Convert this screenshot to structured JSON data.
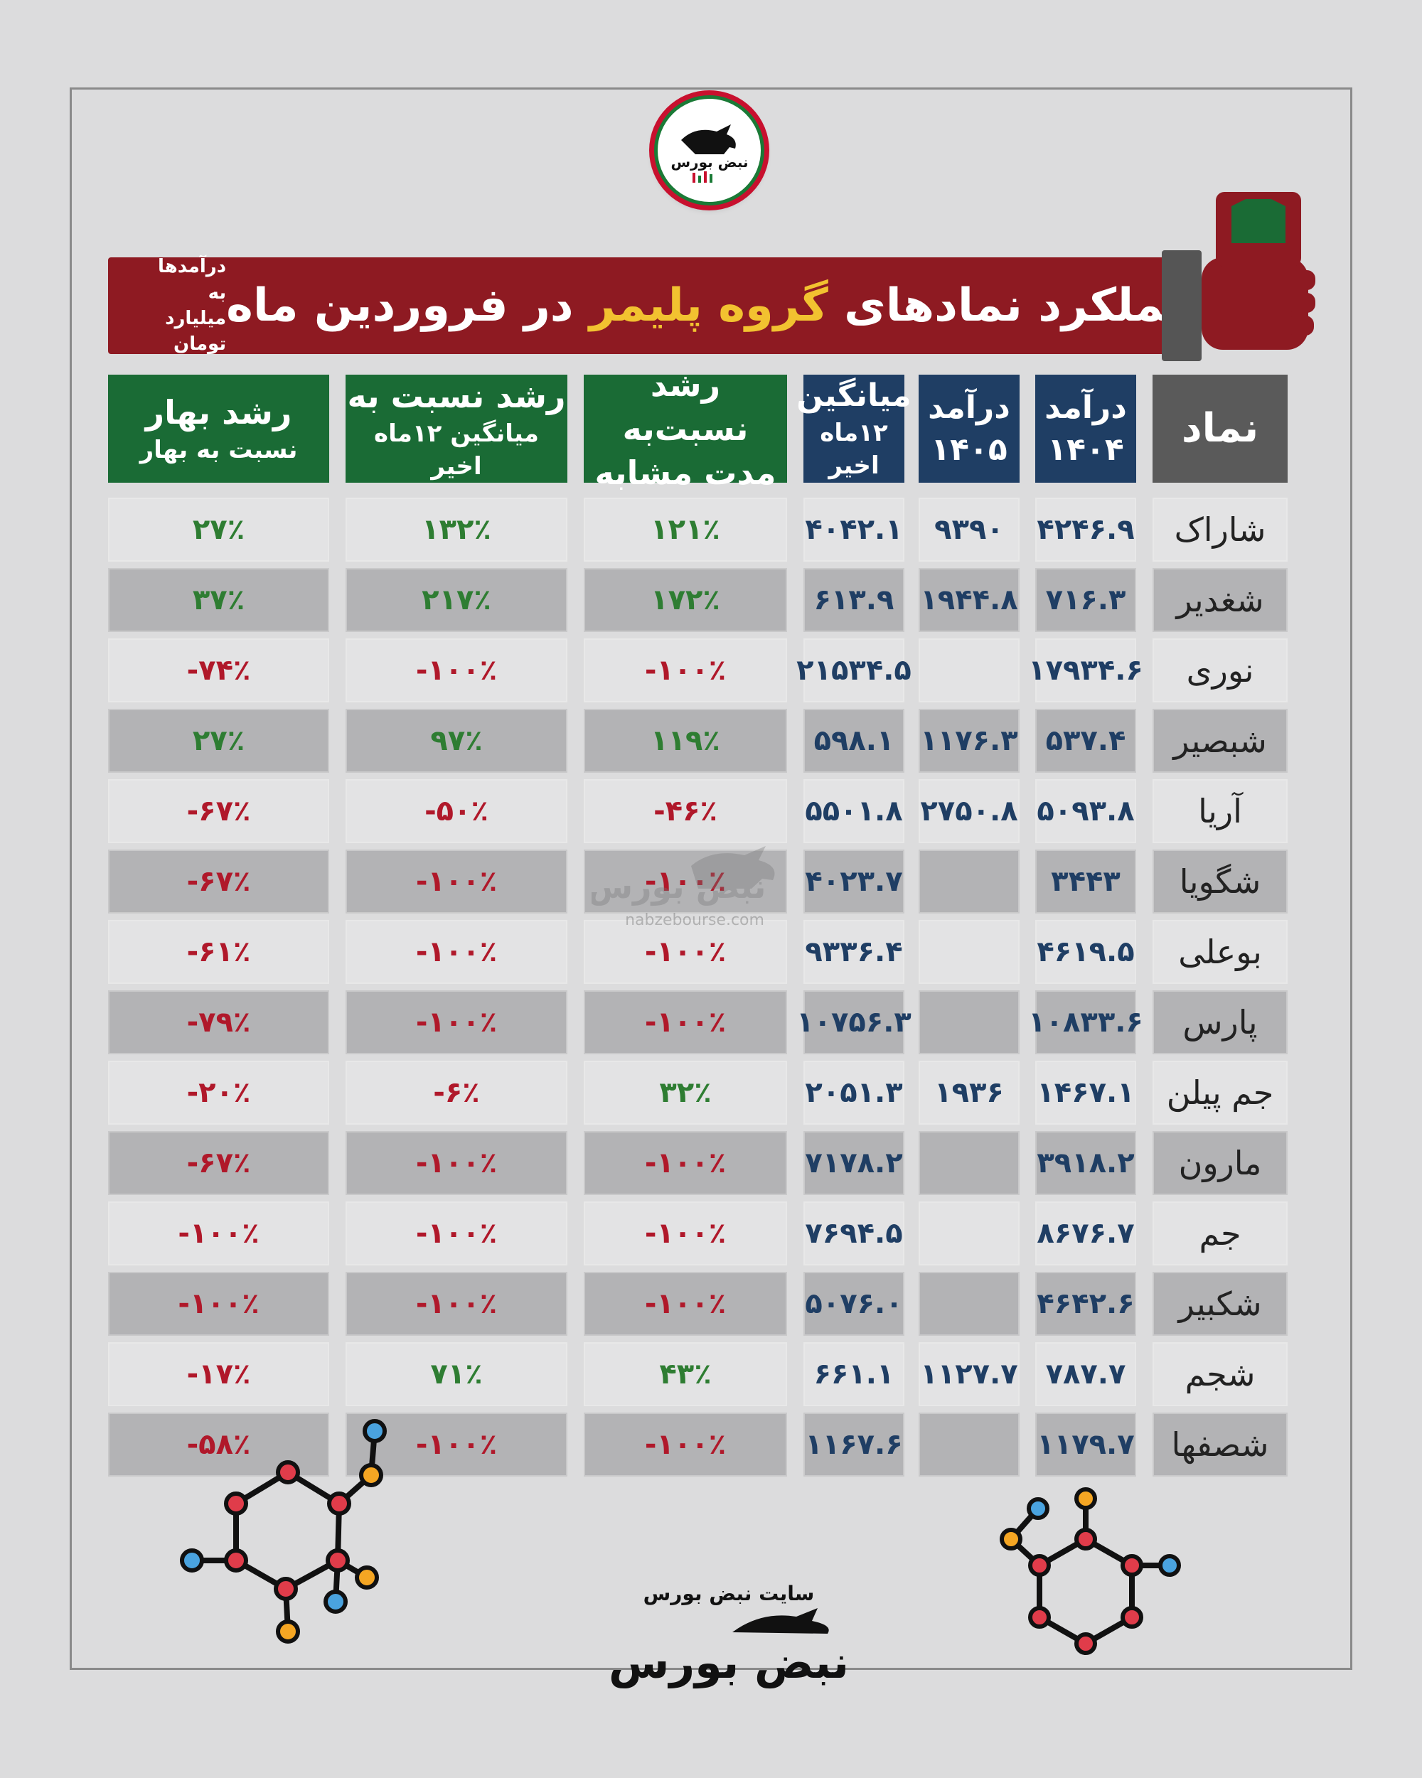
{
  "logo": {
    "text": "نبض بورس"
  },
  "banner": {
    "title_part1": "عملکرد نمادهای",
    "title_highlight": "گروه پلیمر",
    "title_part2": "در فروردین ماه",
    "note_line1": "درآمدها به",
    "note_line2": "میلیارد تومان"
  },
  "columns": {
    "symbol": "نماد",
    "rev1404_line1": "درآمد",
    "rev1404_line2": "۱۴۰۴",
    "rev1405_line1": "درآمد",
    "rev1405_line2": "۱۴۰۵",
    "avg_line1": "میانگین",
    "avg_line2": "۱۲ماه اخیر",
    "growth_same_line1": "رشد نسبت‌به",
    "growth_same_line2": "مدت مشابه",
    "growth_avg_line1": "رشد نسبت به",
    "growth_avg_line2": "میانگین ۱۲ماه اخیر",
    "growth_spring_line1": "رشد بهار",
    "growth_spring_line2": "نسبت به بهار"
  },
  "rows": [
    {
      "symbol": "شاراک",
      "rev1404": "۴۲۴۶.۹",
      "rev1405": "۹۳۹۰",
      "avg": "۴۰۴۲.۱",
      "g_same": "۱۲۱٪",
      "g_avg": "۱۳۲٪",
      "g_spring": "۲۷٪",
      "s_same": "pos",
      "s_avg": "pos",
      "s_spring": "pos"
    },
    {
      "symbol": "شغدیر",
      "rev1404": "۷۱۶.۳",
      "rev1405": "۱۹۴۴.۸",
      "avg": "۶۱۳.۹",
      "g_same": "۱۷۲٪",
      "g_avg": "۲۱۷٪",
      "g_spring": "۳۷٪",
      "s_same": "pos",
      "s_avg": "pos",
      "s_spring": "pos"
    },
    {
      "symbol": "نوری",
      "rev1404": "۱۷۹۳۴.۶",
      "rev1405": "",
      "avg": "۲۱۵۳۴.۵",
      "g_same": "-۱۰۰٪",
      "g_avg": "-۱۰۰٪",
      "g_spring": "-۷۴٪",
      "s_same": "neg",
      "s_avg": "neg",
      "s_spring": "neg"
    },
    {
      "symbol": "شبصیر",
      "rev1404": "۵۳۷.۴",
      "rev1405": "۱۱۷۶.۳",
      "avg": "۵۹۸.۱",
      "g_same": "۱۱۹٪",
      "g_avg": "۹۷٪",
      "g_spring": "۲۷٪",
      "s_same": "pos",
      "s_avg": "pos",
      "s_spring": "pos"
    },
    {
      "symbol": "آریا",
      "rev1404": "۵۰۹۳.۸",
      "rev1405": "۲۷۵۰.۸",
      "avg": "۵۵۰۱.۸",
      "g_same": "-۴۶٪",
      "g_avg": "-۵۰٪",
      "g_spring": "-۶۷٪",
      "s_same": "neg",
      "s_avg": "neg",
      "s_spring": "neg"
    },
    {
      "symbol": "شگویا",
      "rev1404": "۳۴۴۳",
      "rev1405": "",
      "avg": "۴۰۲۳.۷",
      "g_same": "-۱۰۰٪",
      "g_avg": "-۱۰۰٪",
      "g_spring": "-۶۷٪",
      "s_same": "neg",
      "s_avg": "neg",
      "s_spring": "neg"
    },
    {
      "symbol": "بوعلی",
      "rev1404": "۴۶۱۹.۵",
      "rev1405": "",
      "avg": "۹۳۳۶.۴",
      "g_same": "-۱۰۰٪",
      "g_avg": "-۱۰۰٪",
      "g_spring": "-۶۱٪",
      "s_same": "neg",
      "s_avg": "neg",
      "s_spring": "neg"
    },
    {
      "symbol": "پارس",
      "rev1404": "۱۰۸۳۳.۶",
      "rev1405": "",
      "avg": "۱۰۷۵۶.۳",
      "g_same": "-۱۰۰٪",
      "g_avg": "-۱۰۰٪",
      "g_spring": "-۷۹٪",
      "s_same": "neg",
      "s_avg": "neg",
      "s_spring": "neg"
    },
    {
      "symbol": "جم پیلن",
      "rev1404": "۱۴۶۷.۱",
      "rev1405": "۱۹۳۶",
      "avg": "۲۰۵۱.۳",
      "g_same": "۳۲٪",
      "g_avg": "-۶٪",
      "g_spring": "-۲۰٪",
      "s_same": "pos",
      "s_avg": "neg",
      "s_spring": "neg"
    },
    {
      "symbol": "مارون",
      "rev1404": "۳۹۱۸.۲",
      "rev1405": "",
      "avg": "۷۱۷۸.۲",
      "g_same": "-۱۰۰٪",
      "g_avg": "-۱۰۰٪",
      "g_spring": "-۶۷٪",
      "s_same": "neg",
      "s_avg": "neg",
      "s_spring": "neg"
    },
    {
      "symbol": "جم",
      "rev1404": "۸۶۷۶.۷",
      "rev1405": "",
      "avg": "۷۶۹۴.۵",
      "g_same": "-۱۰۰٪",
      "g_avg": "-۱۰۰٪",
      "g_spring": "-۱۰۰٪",
      "s_same": "neg",
      "s_avg": "neg",
      "s_spring": "neg"
    },
    {
      "symbol": "شکبیر",
      "rev1404": "۴۶۴۲.۶",
      "rev1405": "",
      "avg": "۵۰۷۶.۰",
      "g_same": "-۱۰۰٪",
      "g_avg": "-۱۰۰٪",
      "g_spring": "-۱۰۰٪",
      "s_same": "neg",
      "s_avg": "neg",
      "s_spring": "neg"
    },
    {
      "symbol": "شجم",
      "rev1404": "۷۸۷.۷",
      "rev1405": "۱۱۲۷.۷",
      "avg": "۶۶۱.۱",
      "g_same": "۴۳٪",
      "g_avg": "۷۱٪",
      "g_spring": "-۱۷٪",
      "s_same": "pos",
      "s_avg": "pos",
      "s_spring": "neg"
    },
    {
      "symbol": "شصفها",
      "rev1404": "۱۱۷۹.۷",
      "rev1405": "",
      "avg": "۱۱۶۷.۶",
      "g_same": "-۱۰۰٪",
      "g_avg": "-۱۰۰٪",
      "g_spring": "-۵۸٪",
      "s_same": "neg",
      "s_avg": "neg",
      "s_spring": "neg"
    }
  ],
  "watermark": {
    "brand": "نبض بورس",
    "site": "nabzebourse.com"
  },
  "footer": {
    "site": "سایت نبض بورس",
    "brand": "نبض بورس"
  },
  "colors": {
    "banner": "#8e1a22",
    "highlight": "#f2c230",
    "green_header": "#1a6b35",
    "navy_header": "#1f3e64",
    "positive": "#2e7d32",
    "negative": "#b0182a"
  },
  "icons": [
    "bull-logo-icon",
    "fist-icon",
    "molecule-icon"
  ]
}
